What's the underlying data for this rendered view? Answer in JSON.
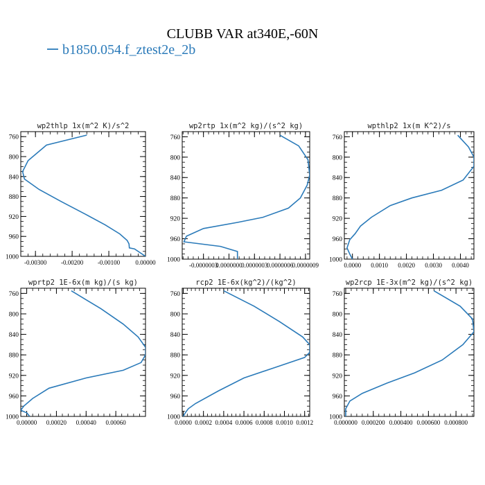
{
  "figure": {
    "title": "CLUBB VAR at340E,-60N",
    "legend_label": "b1850.054.f_ztest2e_2b",
    "line_color": "#2a7ab9"
  },
  "chart_data": [
    {
      "type": "line",
      "title": "wp2thlp  1x(m^2 K)/s^2",
      "xlim": [
        -0.0034,
        0.0
      ],
      "ylim": [
        1000,
        750
      ],
      "yticks": [
        "760",
        "800",
        "840",
        "880",
        "920",
        "960",
        "1000"
      ],
      "xticks": [
        {
          "v": -0.003,
          "label": "-0.00300"
        },
        {
          "v": -0.002,
          "label": "-0.00200"
        },
        {
          "v": -0.001,
          "label": "-0.00100"
        },
        {
          "v": 0.0,
          "label": "0.00000"
        }
      ],
      "series": [
        {
          "x": [
            -0.0016,
            -0.0027,
            -0.0032,
            -0.00335,
            -0.0033,
            -0.0029,
            -0.0023,
            -0.00165,
            -0.0011,
            -0.0007,
            -0.0005,
            -0.00045,
            -0.00044,
            -0.0003,
            0.0
          ],
          "y": [
            757,
            777,
            808,
            830,
            845,
            866,
            890,
            915,
            937,
            955,
            968,
            975,
            983,
            985,
            1000
          ]
        }
      ]
    },
    {
      "type": "line",
      "title": "wp2rtp  1x(m^2 kg)/(s^2 kg)",
      "xlim": [
        -5.5e-07,
        9.5e-07
      ],
      "ylim": [
        1000,
        750
      ],
      "yticks": [
        "760",
        "800",
        "840",
        "880",
        "920",
        "960",
        "1000"
      ],
      "xticks": [
        {
          "v": -3e-07,
          "label": "-0.0000003"
        },
        {
          "v": 0.0,
          "label": "0.0000000"
        },
        {
          "v": 3e-07,
          "label": "0.0000003"
        },
        {
          "v": 6e-07,
          "label": "0.0000006"
        },
        {
          "v": 9e-07,
          "label": "0.0000009"
        }
      ],
      "series": [
        {
          "x": [
            6e-07,
            8.2e-07,
            9.3e-07,
            9.5e-07,
            9.2e-07,
            8.4e-07,
            7e-07,
            4e-07,
            1e-07,
            -3e-07,
            -5e-07,
            -5.3e-07,
            -1e-07,
            1e-07,
            1e-07
          ],
          "y": [
            757,
            778,
            805,
            835,
            855,
            880,
            900,
            918,
            928,
            940,
            955,
            966,
            975,
            985,
            1000
          ]
        }
      ]
    },
    {
      "type": "line",
      "title": "wpthlp2  1x(m K^2)/s",
      "xlim": [
        -0.0003,
        0.0045
      ],
      "ylim": [
        1000,
        750
      ],
      "yticks": [
        "760",
        "800",
        "840",
        "880",
        "920",
        "960",
        "1000"
      ],
      "xticks": [
        {
          "v": 0.0,
          "label": "0.0000"
        },
        {
          "v": 0.001,
          "label": "0.0010"
        },
        {
          "v": 0.002,
          "label": "0.0020"
        },
        {
          "v": 0.003,
          "label": "0.0030"
        },
        {
          "v": 0.004,
          "label": "0.0040"
        }
      ],
      "series": [
        {
          "x": [
            0.0039,
            0.0043,
            0.0045,
            0.0045,
            0.0041,
            0.0033,
            0.0022,
            0.0014,
            0.0007,
            0.0003,
            0.0001,
            -0.0001,
            -0.0002,
            -0.0001,
            0.0
          ],
          "y": [
            757,
            780,
            800,
            818,
            845,
            865,
            880,
            895,
            918,
            935,
            950,
            962,
            978,
            990,
            1000
          ]
        }
      ]
    },
    {
      "type": "line",
      "title": "wprtp2  1E-6x(m kg)/(s kg)",
      "xlim": [
        -4e-05,
        0.0008
      ],
      "ylim": [
        1000,
        750
      ],
      "yticks": [
        "760",
        "800",
        "840",
        "880",
        "920",
        "960",
        "1000"
      ],
      "xticks": [
        {
          "v": 0.0,
          "label": "0.00000"
        },
        {
          "v": 0.0002,
          "label": "0.00020"
        },
        {
          "v": 0.0004,
          "label": "0.00040"
        },
        {
          "v": 0.0006,
          "label": "0.00060"
        }
      ],
      "series": [
        {
          "x": [
            0.0003,
            0.0005,
            0.00065,
            0.00075,
            0.0008,
            0.0008,
            0.00077,
            0.00065,
            0.0004,
            0.00015,
            4e-05,
            -2e-05,
            -4e-05,
            0.0,
            2e-05
          ],
          "y": [
            755,
            790,
            820,
            845,
            865,
            880,
            895,
            910,
            925,
            945,
            965,
            980,
            988,
            993,
            1000
          ]
        }
      ]
    },
    {
      "type": "line",
      "title": "rcp2  1E-6x(kg^2)/(kg^2)",
      "xlim": [
        -1e-05,
        0.00125
      ],
      "ylim": [
        1000,
        750
      ],
      "yticks": [
        "760",
        "800",
        "840",
        "880",
        "920",
        "960",
        "1000"
      ],
      "xticks": [
        {
          "v": 0.0,
          "label": "0.0000"
        },
        {
          "v": 0.0002,
          "label": "0.0002"
        },
        {
          "v": 0.0004,
          "label": "0.0004"
        },
        {
          "v": 0.0006,
          "label": "0.0006"
        },
        {
          "v": 0.0008,
          "label": "0.0008"
        },
        {
          "v": 0.001,
          "label": "0.0010"
        },
        {
          "v": 0.0012,
          "label": "0.0012"
        }
      ],
      "series": [
        {
          "x": [
            0.0004,
            0.0007,
            0.00095,
            0.00118,
            0.00125,
            0.00125,
            0.0012,
            0.0009,
            0.0006,
            0.00035,
            0.00012,
            5e-05,
            2e-05,
            0.0
          ],
          "y": [
            755,
            785,
            815,
            845,
            860,
            875,
            885,
            905,
            925,
            950,
            975,
            985,
            993,
            1000
          ]
        }
      ]
    },
    {
      "type": "line",
      "title": "wp2rcp  1E-3x(m^2 kg)/(s^2 kg)",
      "xlim": [
        -1e-05,
        0.00093
      ],
      "ylim": [
        1000,
        750
      ],
      "yticks": [
        "760",
        "800",
        "840",
        "880",
        "920",
        "960",
        "1000"
      ],
      "xticks": [
        {
          "v": 0.0,
          "label": "0.000000"
        },
        {
          "v": 0.0002,
          "label": "0.000200"
        },
        {
          "v": 0.0004,
          "label": "0.000400"
        },
        {
          "v": 0.0006,
          "label": "0.000600"
        },
        {
          "v": 0.0008,
          "label": "0.000800"
        }
      ],
      "series": [
        {
          "x": [
            0.00064,
            0.00083,
            0.00092,
            0.00093,
            0.00085,
            0.0007,
            0.0005,
            0.0003,
            0.00012,
            3e-05,
            0.0,
            0.0
          ],
          "y": [
            755,
            785,
            810,
            835,
            860,
            890,
            915,
            935,
            955,
            970,
            985,
            1000
          ]
        }
      ]
    }
  ]
}
